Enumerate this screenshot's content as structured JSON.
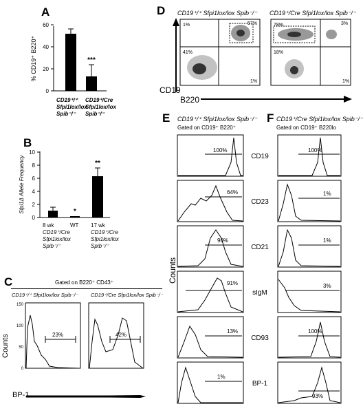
{
  "panels": {
    "A": {
      "letter": "A",
      "ylabel": "% CD19⁺ B220⁺",
      "yticks": [
        "0",
        "20",
        "40",
        "60"
      ],
      "bar_values": [
        52,
        13
      ],
      "significance": "***",
      "genotypes": [
        {
          "line1": "CD19⁺/⁺",
          "line2": "Sfpi1lox/lox",
          "line3": "Spib⁻/⁻"
        },
        {
          "line1": "CD19⁺/Cre",
          "line2": "Sfpi1lox/lox",
          "line3": "Spib⁻/⁻"
        }
      ]
    },
    "B": {
      "letter": "B",
      "ylabel": "Sfpi1Δ Allele Frequency",
      "yticks": [
        "0",
        "2",
        "4",
        "6",
        "8",
        "10"
      ],
      "bar_values": [
        1.0,
        0.15,
        6.3
      ],
      "significance": [
        "*",
        "**"
      ],
      "xlabels": [
        {
          "line1": "8 wk",
          "line2": "CD19⁺/Cre",
          "line3": "Sfpi1lox/lox",
          "line4": "Spib⁻/⁻"
        },
        {
          "line1": "WT"
        },
        {
          "line1": "17 wk",
          "line2": "CD19⁺/Cre",
          "line3": "Sfpi1lox/lox",
          "line4": "Spib⁻/⁻"
        }
      ]
    },
    "C": {
      "letter": "C",
      "gate": "Gated on B220⁺ CD43⁺",
      "col1": "CD19⁺/⁺  Sfpi1lox/lox  Spib⁻/⁻",
      "col2": "CD19⁺/Cre  Sfpi1lox/lox  Spib⁻/⁻",
      "ylabel": "Counts",
      "xlabel": "BP-1",
      "yticks": [
        "0",
        "50",
        "100",
        "150"
      ],
      "percents": [
        "23%",
        "42%"
      ]
    },
    "D": {
      "letter": "D",
      "col1": "CD19⁺/⁺  Sfpi1lox/lox  Spib⁻/⁻",
      "col2": "CD19⁺/Cre  Sfpi1lox/lox  Spib⁻/⁻",
      "xlabel": "B220",
      "ylabel": "CD19",
      "plot1": [
        "1%",
        "57%",
        "41%",
        "1%"
      ],
      "plot2": [
        "78%",
        "3%",
        "18%",
        "1%"
      ]
    },
    "E": {
      "letter": "E",
      "title": "CD19⁺/⁺  Sfpi1lox/lox  Spib⁻/⁻",
      "gate": "Gated on CD19⁺ B220⁺",
      "percents": [
        "100%",
        "64%",
        "90%",
        "91%",
        "13%",
        "1%"
      ]
    },
    "F": {
      "letter": "F",
      "title": "CD19⁺/Cre  Sfpi1lox/lox  Spib⁻/⁻",
      "gate": "Gated on CD19⁺ B220lo",
      "percents": [
        "100%",
        "1%",
        "1%",
        "3%",
        "100%",
        "93%"
      ]
    },
    "EF": {
      "markers": [
        "CD19",
        "CD23",
        "CD21",
        "sIgM",
        "CD93",
        "BP-1"
      ],
      "ylabel": "Counts"
    }
  }
}
